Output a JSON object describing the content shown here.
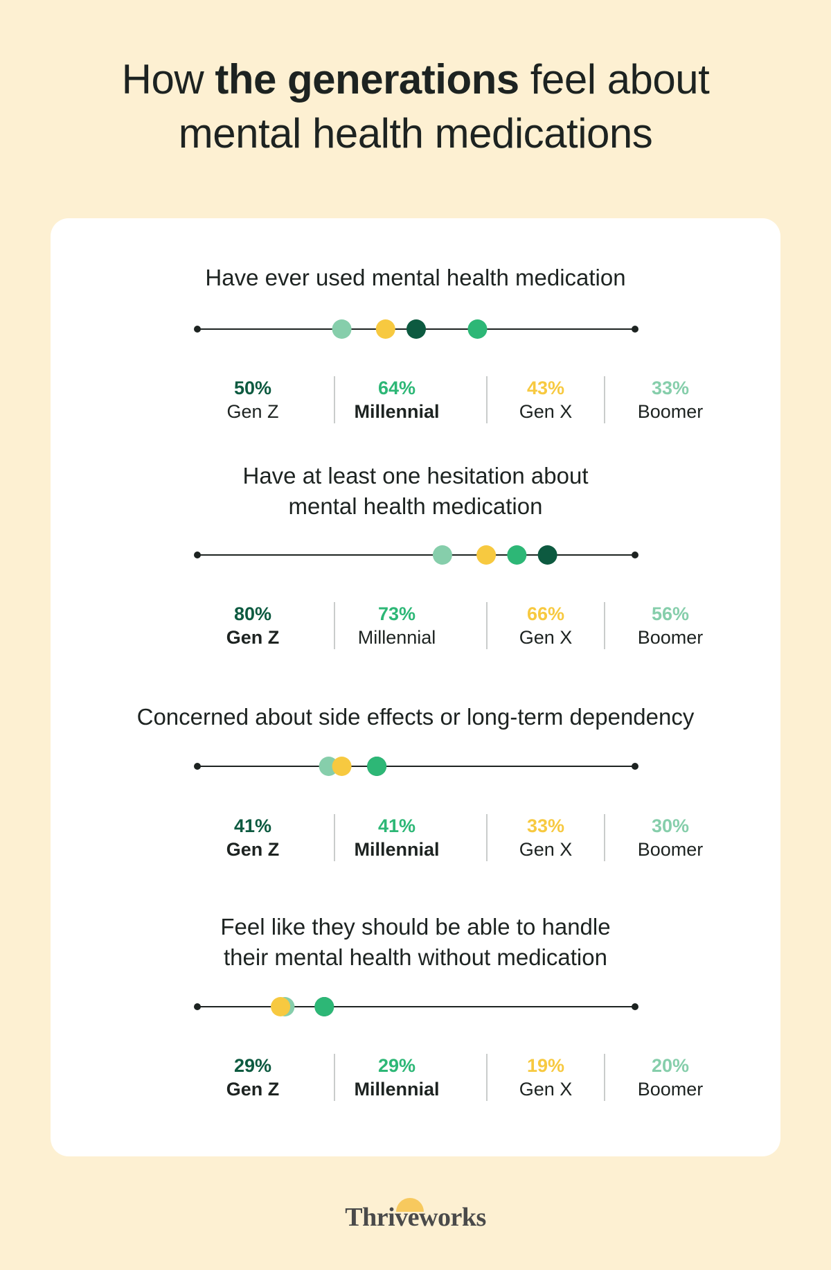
{
  "title": {
    "plain": "How ",
    "bold": "the generations",
    "rest_line1": " feel about",
    "line2": "mental health medications"
  },
  "colors": {
    "gen_z": "#0d5a40",
    "millennial": "#2db776",
    "gen_x": "#f7c940",
    "boomer": "#86ceab",
    "background": "#fdf0d2",
    "card": "#ffffff",
    "axis": "#1d2321"
  },
  "chart_data": [
    {
      "type": "scatter",
      "title": "Have ever used mental health medication",
      "categories": [
        "Gen Z",
        "Millennial",
        "Gen X",
        "Boomer"
      ],
      "values": [
        50,
        64,
        43,
        33
      ],
      "labels": [
        "50%",
        "64%",
        "43%",
        "33%"
      ],
      "highlight": [
        "Millennial"
      ],
      "xlim": [
        0,
        100
      ]
    },
    {
      "type": "scatter",
      "title": "Have at least one hesitation about mental health medication",
      "title_lines": [
        "Have at least one hesitation about",
        "mental health medication"
      ],
      "categories": [
        "Gen Z",
        "Millennial",
        "Gen X",
        "Boomer"
      ],
      "values": [
        80,
        73,
        66,
        56
      ],
      "labels": [
        "80%",
        "73%",
        "66%",
        "56%"
      ],
      "highlight": [
        "Gen Z"
      ],
      "xlim": [
        0,
        100
      ]
    },
    {
      "type": "scatter",
      "title": "Concerned about side effects or long-term dependency",
      "categories": [
        "Gen Z",
        "Millennial",
        "Gen X",
        "Boomer"
      ],
      "values": [
        41,
        41,
        33,
        30
      ],
      "labels": [
        "41%",
        "41%",
        "33%",
        "30%"
      ],
      "highlight": [
        "Gen Z",
        "Millennial"
      ],
      "xlim": [
        0,
        100
      ]
    },
    {
      "type": "scatter",
      "title": "Feel like they should be able to handle their mental health without medication",
      "title_lines": [
        "Feel like they should be able to handle",
        "their mental health without medication"
      ],
      "categories": [
        "Gen Z",
        "Millennial",
        "Gen X",
        "Boomer"
      ],
      "values": [
        29,
        29,
        19,
        20
      ],
      "labels": [
        "29%",
        "29%",
        "19%",
        "20%"
      ],
      "highlight": [
        "Gen Z",
        "Millennial"
      ],
      "xlim": [
        0,
        100
      ]
    }
  ],
  "logo": {
    "text": "Thriveworks"
  }
}
